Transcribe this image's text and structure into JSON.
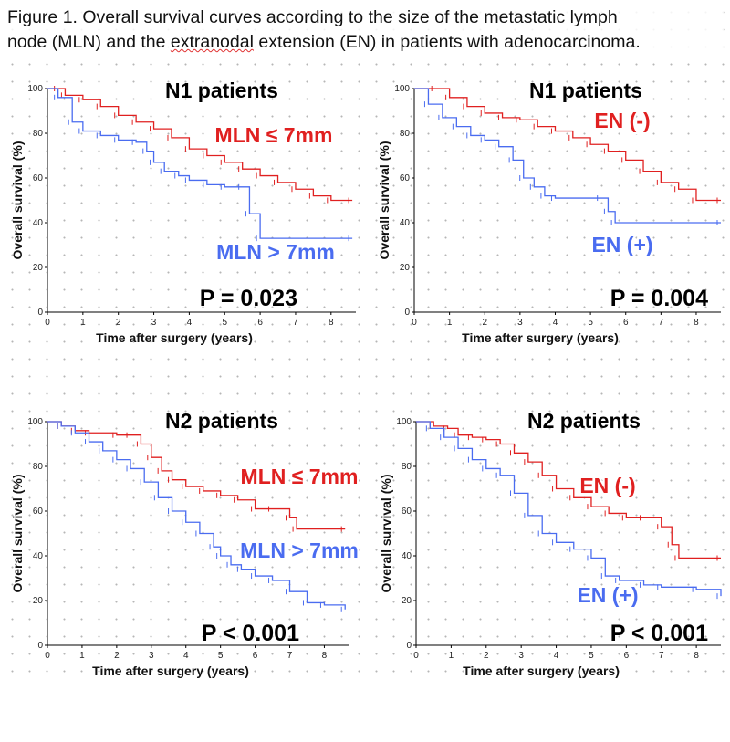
{
  "caption": {
    "line1": "Figure 1. Overall survival curves according to the size of the metastatic lymph",
    "line2_pre": "node (MLN) and the ",
    "line2_underlined": "extranodal",
    "line2_post": " extension (EN) in patients with adenocarcinoma."
  },
  "colors": {
    "red": "#e02020",
    "blue": "#4a6cf0"
  },
  "chart_data": [
    {
      "type": "line",
      "title": "N1 patients",
      "xlabel": "Time after surgery (years)",
      "ylabel": "Overall survival (%)",
      "xlim": [
        0,
        8.7
      ],
      "ylim": [
        0,
        100
      ],
      "xticks": [
        "0",
        "1",
        "2",
        "3",
        "4",
        "5",
        "6",
        "7",
        "8"
      ],
      "yticks": [
        "0",
        "20",
        "40",
        "60",
        "80",
        "100"
      ],
      "p_value": "P = 0.023",
      "series": [
        {
          "name": "MLN ≤ 7mm",
          "color": "#e02020",
          "points": [
            [
              0,
              100
            ],
            [
              0.3,
              100
            ],
            [
              0.5,
              97
            ],
            [
              1.0,
              95
            ],
            [
              1.5,
              92
            ],
            [
              2.0,
              88
            ],
            [
              2.5,
              85
            ],
            [
              3.0,
              82
            ],
            [
              3.5,
              78
            ],
            [
              4.0,
              73
            ],
            [
              4.5,
              70
            ],
            [
              5.0,
              67
            ],
            [
              5.5,
              64
            ],
            [
              6.0,
              61
            ],
            [
              6.5,
              58
            ],
            [
              7.0,
              55
            ],
            [
              7.5,
              52
            ],
            [
              8.0,
              50
            ],
            [
              8.6,
              50
            ]
          ]
        },
        {
          "name": "MLN > 7mm",
          "color": "#4a6cf0",
          "points": [
            [
              0,
              100
            ],
            [
              0.3,
              96
            ],
            [
              0.7,
              85
            ],
            [
              1.0,
              81
            ],
            [
              1.5,
              79
            ],
            [
              2.0,
              77
            ],
            [
              2.5,
              76
            ],
            [
              2.8,
              72
            ],
            [
              3.0,
              67
            ],
            [
              3.3,
              63
            ],
            [
              3.7,
              61
            ],
            [
              4.0,
              59
            ],
            [
              4.5,
              57
            ],
            [
              5.0,
              56
            ],
            [
              5.5,
              56
            ],
            [
              5.7,
              44
            ],
            [
              6.0,
              33
            ],
            [
              8.6,
              33
            ]
          ]
        }
      ]
    },
    {
      "type": "line",
      "title": "N1 patients",
      "xlabel": "Time after surgery (years)",
      "ylabel": "Overall survival (%)",
      "xlim": [
        0,
        8.7
      ],
      "ylim": [
        0,
        100
      ],
      "xticks": [
        "0",
        "1",
        "2",
        "3",
        "4",
        "5",
        "6",
        "7",
        "8"
      ],
      "yticks": [
        "0",
        "20",
        "40",
        "60",
        "80",
        "100"
      ],
      "p_value": "P = 0.004",
      "series": [
        {
          "name": "EN (-)",
          "color": "#e02020",
          "points": [
            [
              0,
              100
            ],
            [
              0.6,
              100
            ],
            [
              1.0,
              96
            ],
            [
              1.5,
              92
            ],
            [
              2.0,
              89
            ],
            [
              2.5,
              87
            ],
            [
              3.0,
              86
            ],
            [
              3.5,
              83
            ],
            [
              4.0,
              81
            ],
            [
              4.5,
              78
            ],
            [
              5.0,
              75
            ],
            [
              5.5,
              72
            ],
            [
              6.0,
              68
            ],
            [
              6.5,
              63
            ],
            [
              7.0,
              58
            ],
            [
              7.5,
              55
            ],
            [
              8.0,
              50
            ],
            [
              8.7,
              50
            ]
          ]
        },
        {
          "name": "EN (+)",
          "color": "#4a6cf0",
          "points": [
            [
              0,
              100
            ],
            [
              0.4,
              93
            ],
            [
              0.8,
              87
            ],
            [
              1.2,
              83
            ],
            [
              1.6,
              79
            ],
            [
              2.0,
              77
            ],
            [
              2.4,
              74
            ],
            [
              2.8,
              68
            ],
            [
              3.1,
              60
            ],
            [
              3.4,
              56
            ],
            [
              3.7,
              52
            ],
            [
              4.0,
              51
            ],
            [
              5.3,
              51
            ],
            [
              5.5,
              45
            ],
            [
              5.7,
              40
            ],
            [
              8.7,
              40
            ]
          ]
        }
      ]
    },
    {
      "type": "line",
      "title": "N2 patients",
      "xlabel": "Time after surgery (years)",
      "ylabel": "Overall survival (%)",
      "xlim": [
        0,
        8.7
      ],
      "ylim": [
        0,
        100
      ],
      "xticks": [
        "0",
        "1",
        "2",
        "3",
        "4",
        "5",
        "6",
        "7",
        "8"
      ],
      "yticks": [
        "0",
        "20",
        "40",
        "60",
        "80",
        "100"
      ],
      "p_value": "P < 0.001",
      "series": [
        {
          "name": "MLN ≤ 7mm",
          "color": "#e02020",
          "points": [
            [
              0,
              100
            ],
            [
              0.4,
              98
            ],
            [
              0.8,
              96
            ],
            [
              1.2,
              95
            ],
            [
              2.0,
              94
            ],
            [
              2.4,
              94
            ],
            [
              2.7,
              90
            ],
            [
              3.0,
              84
            ],
            [
              3.3,
              78
            ],
            [
              3.6,
              74
            ],
            [
              4.0,
              71
            ],
            [
              4.5,
              69
            ],
            [
              5.0,
              67
            ],
            [
              5.5,
              65
            ],
            [
              6.0,
              61
            ],
            [
              6.5,
              61
            ],
            [
              7.0,
              57
            ],
            [
              7.2,
              52
            ],
            [
              8.6,
              52
            ]
          ]
        },
        {
          "name": "MLN > 7mm",
          "color": "#4a6cf0",
          "points": [
            [
              0,
              100
            ],
            [
              0.4,
              98
            ],
            [
              0.8,
              95
            ],
            [
              1.2,
              91
            ],
            [
              1.6,
              87
            ],
            [
              2.0,
              83
            ],
            [
              2.4,
              79
            ],
            [
              2.8,
              73
            ],
            [
              3.2,
              66
            ],
            [
              3.6,
              60
            ],
            [
              4.0,
              55
            ],
            [
              4.4,
              50
            ],
            [
              4.8,
              44
            ],
            [
              5.0,
              40
            ],
            [
              5.3,
              36
            ],
            [
              5.6,
              34
            ],
            [
              6.0,
              31
            ],
            [
              6.5,
              29
            ],
            [
              7.0,
              24
            ],
            [
              7.5,
              19
            ],
            [
              8.0,
              18
            ],
            [
              8.6,
              16
            ]
          ]
        }
      ]
    },
    {
      "type": "line",
      "title": "N2 patients",
      "xlabel": "Time after surgery (years)",
      "ylabel": "Overall survival (%)",
      "xlim": [
        0,
        8.7
      ],
      "ylim": [
        0,
        100
      ],
      "xticks": [
        "0",
        "1",
        "2",
        "3",
        "4",
        "5",
        "6",
        "7",
        "8"
      ],
      "yticks": [
        "0",
        "20",
        "40",
        "60",
        "80",
        "100"
      ],
      "p_value": "P < 0.001",
      "series": [
        {
          "name": "EN (-)",
          "color": "#e02020",
          "points": [
            [
              0,
              100
            ],
            [
              0.5,
              98
            ],
            [
              0.9,
              97
            ],
            [
              1.2,
              94
            ],
            [
              1.6,
              93
            ],
            [
              2.0,
              92
            ],
            [
              2.4,
              90
            ],
            [
              2.8,
              86
            ],
            [
              3.2,
              82
            ],
            [
              3.6,
              76
            ],
            [
              4.0,
              70
            ],
            [
              4.5,
              66
            ],
            [
              5.0,
              62
            ],
            [
              5.5,
              59
            ],
            [
              6.0,
              57
            ],
            [
              6.5,
              57
            ],
            [
              7.0,
              53
            ],
            [
              7.3,
              45
            ],
            [
              7.5,
              39
            ],
            [
              8.7,
              39
            ]
          ]
        },
        {
          "name": "EN (+)",
          "color": "#4a6cf0",
          "points": [
            [
              0,
              100
            ],
            [
              0.4,
              97
            ],
            [
              0.8,
              93
            ],
            [
              1.2,
              88
            ],
            [
              1.6,
              83
            ],
            [
              2.0,
              79
            ],
            [
              2.4,
              76
            ],
            [
              2.8,
              68
            ],
            [
              3.2,
              58
            ],
            [
              3.6,
              50
            ],
            [
              4.0,
              46
            ],
            [
              4.5,
              43
            ],
            [
              5.0,
              39
            ],
            [
              5.4,
              31
            ],
            [
              5.8,
              29
            ],
            [
              6.5,
              27
            ],
            [
              7.0,
              26
            ],
            [
              8.0,
              25
            ],
            [
              8.7,
              22
            ]
          ]
        }
      ]
    }
  ]
}
